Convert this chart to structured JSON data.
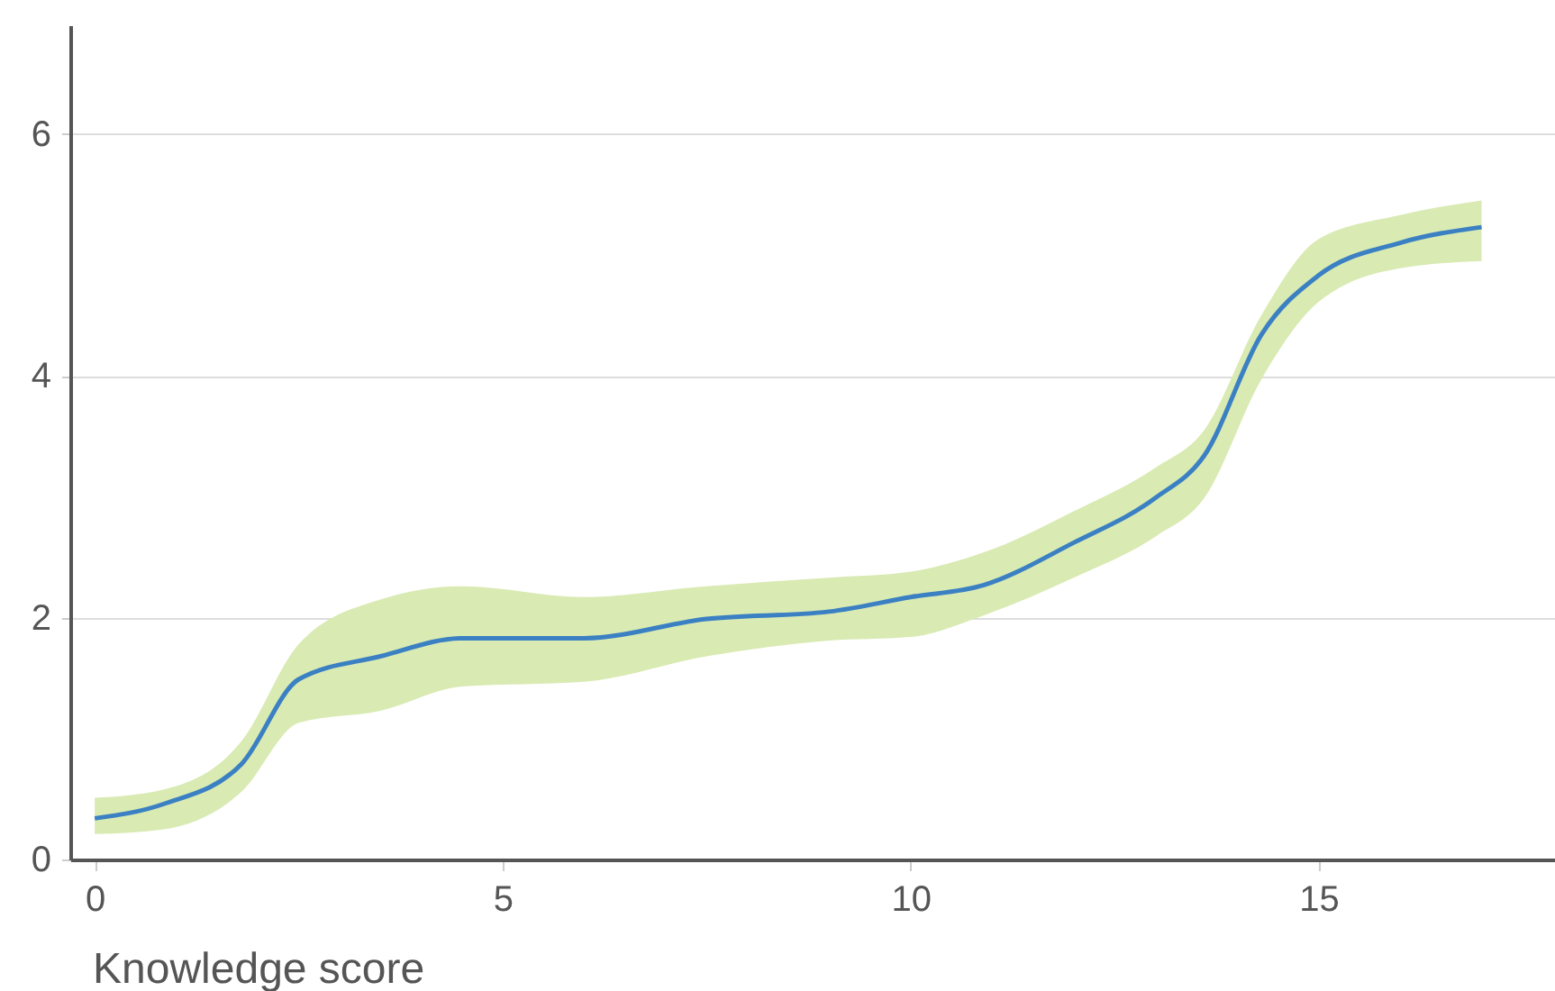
{
  "chart_data": {
    "type": "line",
    "xlabel": "Knowledge score",
    "x": [
      0,
      0.85,
      1.8,
      2.5,
      3.5,
      4.5,
      6,
      7.5,
      9,
      10,
      10.9,
      12,
      13,
      13.6,
      14.3,
      15,
      16,
      17
    ],
    "series": [
      {
        "color": "#3a80c3",
        "values": [
          0.34,
          0.46,
          0.79,
          1.49,
          1.68,
          1.83,
          1.83,
          1.99,
          2.05,
          2.17,
          2.27,
          2.62,
          2.99,
          3.34,
          4.34,
          4.83,
          5.1,
          5.23
        ],
        "upper": [
          0.51,
          0.58,
          0.98,
          1.78,
          2.15,
          2.26,
          2.17,
          2.26,
          2.33,
          2.38,
          2.54,
          2.88,
          3.24,
          3.55,
          4.5,
          5.13,
          5.33,
          5.45
        ],
        "lower": [
          0.21,
          0.25,
          0.56,
          1.13,
          1.23,
          1.43,
          1.47,
          1.68,
          1.81,
          1.84,
          2.02,
          2.33,
          2.67,
          2.99,
          3.97,
          4.61,
          4.89,
          4.95
        ]
      }
    ],
    "xlim": [
      -0.3,
      17.9
    ],
    "xticks": [
      0,
      5,
      10,
      15
    ],
    "ylim": [
      0,
      6.9
    ],
    "yticks": [
      0,
      2,
      4,
      6
    ],
    "grid": "y",
    "marker": "none",
    "line_style": "solid"
  }
}
